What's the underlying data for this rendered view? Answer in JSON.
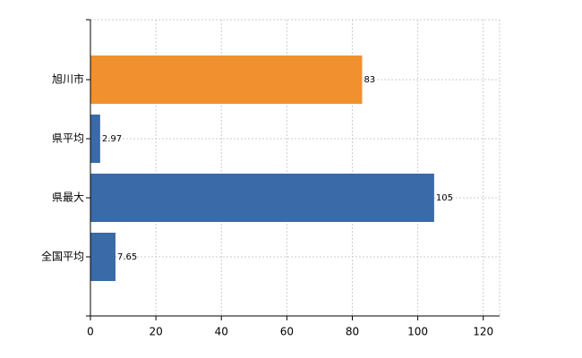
{
  "chart_data": {
    "type": "bar",
    "orientation": "horizontal",
    "categories": [
      "旭川市",
      "県平均",
      "県最大",
      "全国平均"
    ],
    "values": [
      83,
      2.97,
      105,
      7.65
    ],
    "colors": [
      "#f0902f",
      "#3a6aa8",
      "#3a6aa8",
      "#3a6aa8"
    ],
    "xlim": [
      0,
      125
    ],
    "xticks": [
      0,
      20,
      40,
      60,
      80,
      100,
      120
    ],
    "grid": true
  }
}
